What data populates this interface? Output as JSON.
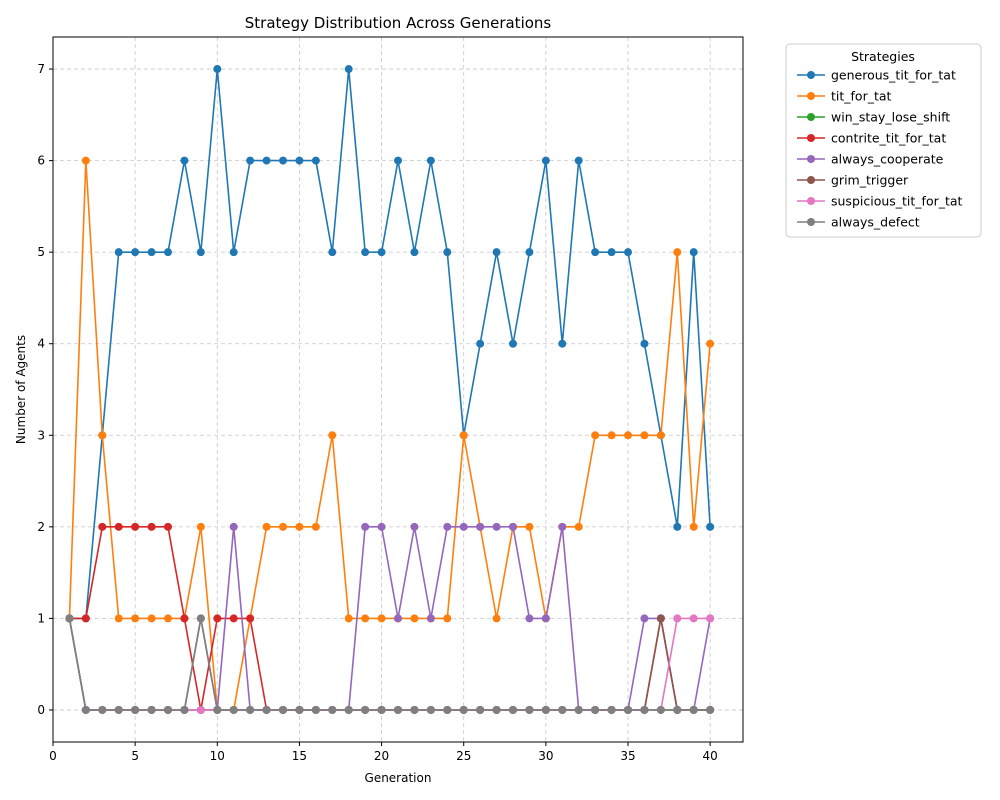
{
  "chart_data": {
    "type": "line",
    "title": "Strategy Distribution Across Generations",
    "xlabel": "Generation",
    "ylabel": "Number of Agents",
    "xlim": [
      0,
      42
    ],
    "ylim": [
      -0.35,
      7.35
    ],
    "xticks": [
      0,
      5,
      10,
      15,
      20,
      25,
      30,
      35,
      40
    ],
    "yticks": [
      0,
      1,
      2,
      3,
      4,
      5,
      6,
      7
    ],
    "grid": true,
    "legend_title": "Strategies",
    "legend_position": "outside-top-right",
    "x": [
      1,
      2,
      3,
      4,
      5,
      6,
      7,
      8,
      9,
      10,
      11,
      12,
      13,
      14,
      15,
      16,
      17,
      18,
      19,
      20,
      21,
      22,
      23,
      24,
      25,
      26,
      27,
      28,
      29,
      30,
      31,
      32,
      33,
      34,
      35,
      36,
      37,
      38,
      39,
      40
    ],
    "series": [
      {
        "name": "generous_tit_for_tat",
        "color": "#1f77b4",
        "values": [
          1,
          1,
          3,
          5,
          5,
          5,
          5,
          6,
          5,
          7,
          5,
          6,
          6,
          6,
          6,
          6,
          5,
          7,
          5,
          5,
          6,
          5,
          6,
          5,
          3,
          4,
          5,
          4,
          5,
          6,
          4,
          6,
          5,
          5,
          5,
          4,
          3,
          2,
          5,
          2
        ]
      },
      {
        "name": "tit_for_tat",
        "color": "#ff7f0e",
        "values": [
          1,
          6,
          3,
          1,
          1,
          1,
          1,
          1,
          2,
          0,
          0,
          1,
          2,
          2,
          2,
          2,
          3,
          1,
          1,
          1,
          1,
          1,
          1,
          1,
          3,
          2,
          1,
          2,
          2,
          1,
          2,
          2,
          3,
          3,
          3,
          3,
          3,
          5,
          2,
          4
        ]
      },
      {
        "name": "win_stay_lose_shift",
        "color": "#2ca02c",
        "values": [
          1,
          0,
          0,
          0,
          0,
          0,
          0,
          0,
          0,
          0,
          0,
          0,
          0,
          0,
          0,
          0,
          0,
          0,
          0,
          0,
          0,
          0,
          0,
          0,
          0,
          0,
          0,
          0,
          0,
          0,
          0,
          0,
          0,
          0,
          0,
          0,
          0,
          0,
          0,
          0
        ]
      },
      {
        "name": "contrite_tit_for_tat",
        "color": "#d62728",
        "values": [
          1,
          1,
          2,
          2,
          2,
          2,
          2,
          1,
          0,
          1,
          1,
          1,
          0,
          0,
          0,
          0,
          0,
          0,
          0,
          0,
          0,
          0,
          0,
          0,
          0,
          0,
          0,
          0,
          0,
          0,
          0,
          0,
          0,
          0,
          0,
          0,
          1,
          0,
          0,
          0
        ]
      },
      {
        "name": "always_cooperate",
        "color": "#9467bd",
        "values": [
          1,
          0,
          0,
          0,
          0,
          0,
          0,
          0,
          0,
          0,
          2,
          0,
          0,
          0,
          0,
          0,
          0,
          0,
          2,
          2,
          1,
          2,
          1,
          2,
          2,
          2,
          2,
          2,
          1,
          1,
          2,
          0,
          0,
          0,
          0,
          1,
          1,
          0,
          0,
          1
        ]
      },
      {
        "name": "grim_trigger",
        "color": "#8c564b",
        "values": [
          1,
          0,
          0,
          0,
          0,
          0,
          0,
          0,
          1,
          0,
          0,
          0,
          0,
          0,
          0,
          0,
          0,
          0,
          0,
          0,
          0,
          0,
          0,
          0,
          0,
          0,
          0,
          0,
          0,
          0,
          0,
          0,
          0,
          0,
          0,
          0,
          1,
          0,
          0,
          0
        ]
      },
      {
        "name": "suspicious_tit_for_tat",
        "color": "#e377c2",
        "values": [
          1,
          0,
          0,
          0,
          0,
          0,
          0,
          0,
          0,
          0,
          0,
          0,
          0,
          0,
          0,
          0,
          0,
          0,
          0,
          0,
          0,
          0,
          0,
          0,
          0,
          0,
          0,
          0,
          0,
          0,
          0,
          0,
          0,
          0,
          0,
          0,
          0,
          1,
          1,
          1
        ]
      },
      {
        "name": "always_defect",
        "color": "#7f7f7f",
        "values": [
          1,
          0,
          0,
          0,
          0,
          0,
          0,
          0,
          1,
          0,
          0,
          0,
          0,
          0,
          0,
          0,
          0,
          0,
          0,
          0,
          0,
          0,
          0,
          0,
          0,
          0,
          0,
          0,
          0,
          0,
          0,
          0,
          0,
          0,
          0,
          0,
          0,
          0,
          0,
          0
        ]
      }
    ]
  }
}
